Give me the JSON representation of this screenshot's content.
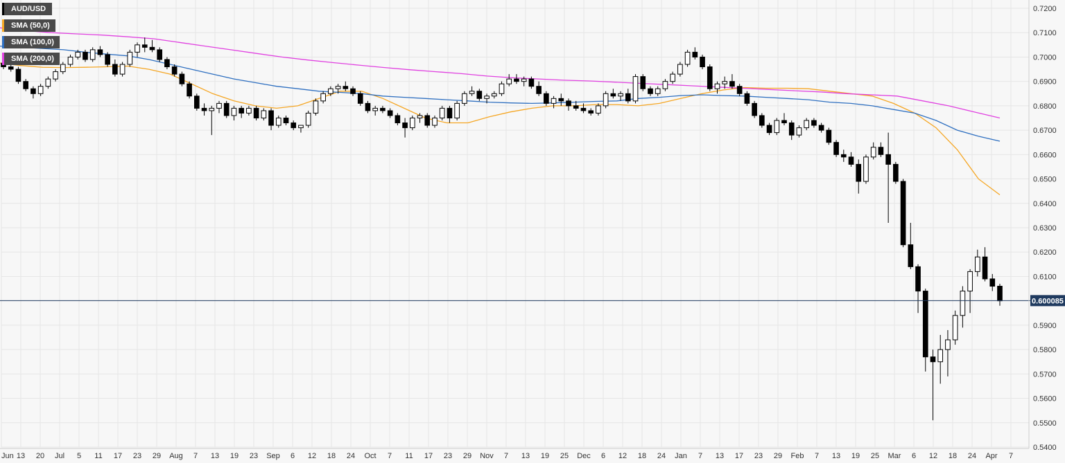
{
  "legend": {
    "symbol": "AUD/USD",
    "sma50": "SMA (50,0)",
    "sma100": "SMA (100,0)",
    "sma200": "SMA (200,0)"
  },
  "colors": {
    "background": "#f7f7f7",
    "grid": "#e6e6e6",
    "axis_text": "#333333",
    "candle_up_fill": "#ffffff",
    "candle_down_fill": "#000000",
    "candle_outline": "#000000",
    "sma50": "#f5a623",
    "sma100": "#2e6fc0",
    "sma200": "#e040e0",
    "price_line": "#1f3a5f",
    "price_label_bg": "#1f3a5f"
  },
  "chart_data": {
    "type": "candlestick",
    "title": "",
    "pair": "AUD/USD",
    "period": "daily",
    "ylim": [
      0.54,
      0.72
    ],
    "y_ticks": [
      "0.7200",
      "0.7100",
      "0.7000",
      "0.6900",
      "0.6800",
      "0.6700",
      "0.6600",
      "0.6500",
      "0.6400",
      "0.6300",
      "0.6200",
      "0.6100",
      "0.5900",
      "0.5800",
      "0.5700",
      "0.5600",
      "0.5500",
      "0.5400"
    ],
    "x_tick_labels": [
      "Jun",
      "13",
      "20",
      "Jul",
      "5",
      "11",
      "17",
      "23",
      "29",
      "Aug",
      "7",
      "13",
      "19",
      "23",
      "Sep",
      "6",
      "12",
      "18",
      "24",
      "Oct",
      "7",
      "11",
      "17",
      "23",
      "29",
      "Nov",
      "7",
      "13",
      "19",
      "25",
      "Dec",
      "6",
      "12",
      "18",
      "24",
      "Jan",
      "7",
      "13",
      "17",
      "23",
      "29",
      "Feb",
      "7",
      "13",
      "19",
      "25",
      "Mar",
      "6",
      "12",
      "18",
      "24",
      "Apr",
      "7"
    ],
    "current_price": 0.600085,
    "current_price_label": "0.600085",
    "grid": true,
    "legend_position": "top-left",
    "series": [
      {
        "name": "SMA (50,0)",
        "key": "sma50",
        "values": [
          0.6975,
          0.6965,
          0.6958,
          0.6957,
          0.6958,
          0.696,
          0.6963,
          0.695,
          0.693,
          0.689,
          0.685,
          0.682,
          0.68,
          0.679,
          0.68,
          0.683,
          0.686,
          0.686,
          0.683,
          0.679,
          0.675,
          0.673,
          0.673,
          0.6755,
          0.6775,
          0.679,
          0.68,
          0.68,
          0.6805,
          0.6805,
          0.68,
          0.681,
          0.683,
          0.685,
          0.6865,
          0.6875,
          0.6872,
          0.6872,
          0.687,
          0.686,
          0.685,
          0.684,
          0.681,
          0.677,
          0.671,
          0.662,
          0.65,
          0.6435
        ]
      },
      {
        "name": "SMA (100,0)",
        "key": "sma100",
        "values": [
          0.7045,
          0.704,
          0.7035,
          0.703,
          0.702,
          0.7012,
          0.7005,
          0.699,
          0.697,
          0.695,
          0.693,
          0.691,
          0.6895,
          0.688,
          0.687,
          0.686,
          0.6855,
          0.685,
          0.684,
          0.6835,
          0.683,
          0.6825,
          0.682,
          0.6815,
          0.6812,
          0.681,
          0.6812,
          0.6815,
          0.6818,
          0.682,
          0.683,
          0.6835,
          0.6842,
          0.6845,
          0.6842,
          0.684,
          0.6835,
          0.683,
          0.6825,
          0.6815,
          0.681,
          0.68,
          0.6785,
          0.677,
          0.674,
          0.67,
          0.6675,
          0.6655
        ]
      },
      {
        "name": "SMA (200,0)",
        "key": "sma200",
        "values": [
          0.712,
          0.7108,
          0.71,
          0.7095,
          0.709,
          0.7083,
          0.7075,
          0.706,
          0.7045,
          0.703,
          0.7015,
          0.7,
          0.6988,
          0.6977,
          0.6967,
          0.6957,
          0.6948,
          0.694,
          0.6932,
          0.6922,
          0.6915,
          0.691,
          0.6905,
          0.6902,
          0.6897,
          0.6892,
          0.6887,
          0.6882,
          0.6877,
          0.6872,
          0.6867,
          0.6862,
          0.6857,
          0.685,
          0.6845,
          0.684,
          0.682,
          0.68,
          0.6775,
          0.675
        ]
      },
      {
        "name": "AUD/USD",
        "key": "candles",
        "ohlc": [
          [
            0.6975,
            0.699,
            0.695,
            0.696
          ],
          [
            0.696,
            0.6975,
            0.694,
            0.695
          ],
          [
            0.695,
            0.696,
            0.689,
            0.69
          ],
          [
            0.69,
            0.691,
            0.686,
            0.687
          ],
          [
            0.687,
            0.688,
            0.683,
            0.685
          ],
          [
            0.685,
            0.689,
            0.684,
            0.688
          ],
          [
            0.688,
            0.692,
            0.687,
            0.691
          ],
          [
            0.691,
            0.695,
            0.69,
            0.694
          ],
          [
            0.694,
            0.698,
            0.693,
            0.697
          ],
          [
            0.697,
            0.701,
            0.696,
            0.7
          ],
          [
            0.7,
            0.703,
            0.699,
            0.702
          ],
          [
            0.702,
            0.703,
            0.698,
            0.699
          ],
          [
            0.699,
            0.704,
            0.698,
            0.703
          ],
          [
            0.703,
            0.7045,
            0.7,
            0.701
          ],
          [
            0.701,
            0.702,
            0.696,
            0.697
          ],
          [
            0.697,
            0.699,
            0.692,
            0.693
          ],
          [
            0.693,
            0.698,
            0.692,
            0.697
          ],
          [
            0.697,
            0.703,
            0.696,
            0.702
          ],
          [
            0.702,
            0.706,
            0.7,
            0.705
          ],
          [
            0.705,
            0.708,
            0.702,
            0.704
          ],
          [
            0.704,
            0.707,
            0.702,
            0.703
          ],
          [
            0.703,
            0.704,
            0.698,
            0.699
          ],
          [
            0.699,
            0.7,
            0.695,
            0.696
          ],
          [
            0.696,
            0.697,
            0.692,
            0.693
          ],
          [
            0.693,
            0.694,
            0.688,
            0.689
          ],
          [
            0.689,
            0.69,
            0.683,
            0.684
          ],
          [
            0.684,
            0.685,
            0.678,
            0.679
          ],
          [
            0.679,
            0.681,
            0.676,
            0.678
          ],
          [
            0.678,
            0.68,
            0.668,
            0.679
          ],
          [
            0.679,
            0.682,
            0.677,
            0.681
          ],
          [
            0.681,
            0.682,
            0.675,
            0.676
          ],
          [
            0.676,
            0.68,
            0.674,
            0.679
          ],
          [
            0.679,
            0.68,
            0.675,
            0.677
          ],
          [
            0.677,
            0.68,
            0.676,
            0.679
          ],
          [
            0.679,
            0.68,
            0.674,
            0.675
          ],
          [
            0.675,
            0.679,
            0.674,
            0.678
          ],
          [
            0.678,
            0.679,
            0.67,
            0.672
          ],
          [
            0.672,
            0.676,
            0.671,
            0.675
          ],
          [
            0.675,
            0.676,
            0.672,
            0.673
          ],
          [
            0.673,
            0.674,
            0.67,
            0.671
          ],
          [
            0.671,
            0.672,
            0.669,
            0.672
          ],
          [
            0.672,
            0.678,
            0.671,
            0.677
          ],
          [
            0.677,
            0.683,
            0.676,
            0.682
          ],
          [
            0.682,
            0.686,
            0.681,
            0.685
          ],
          [
            0.685,
            0.688,
            0.684,
            0.687
          ],
          [
            0.687,
            0.689,
            0.685,
            0.688
          ],
          [
            0.688,
            0.69,
            0.686,
            0.687
          ],
          [
            0.687,
            0.688,
            0.684,
            0.685
          ],
          [
            0.685,
            0.686,
            0.68,
            0.681
          ],
          [
            0.681,
            0.682,
            0.677,
            0.678
          ],
          [
            0.678,
            0.68,
            0.676,
            0.679
          ],
          [
            0.679,
            0.68,
            0.677,
            0.678
          ],
          [
            0.678,
            0.679,
            0.675,
            0.676
          ],
          [
            0.676,
            0.677,
            0.672,
            0.673
          ],
          [
            0.673,
            0.675,
            0.667,
            0.671
          ],
          [
            0.671,
            0.676,
            0.67,
            0.675
          ],
          [
            0.675,
            0.677,
            0.673,
            0.676
          ],
          [
            0.676,
            0.677,
            0.671,
            0.672
          ],
          [
            0.672,
            0.676,
            0.671,
            0.675
          ],
          [
            0.675,
            0.68,
            0.674,
            0.679
          ],
          [
            0.679,
            0.68,
            0.673,
            0.675
          ],
          [
            0.675,
            0.682,
            0.674,
            0.681
          ],
          [
            0.681,
            0.686,
            0.68,
            0.685
          ],
          [
            0.685,
            0.688,
            0.684,
            0.686
          ],
          [
            0.686,
            0.687,
            0.682,
            0.683
          ],
          [
            0.683,
            0.685,
            0.681,
            0.684
          ],
          [
            0.684,
            0.686,
            0.683,
            0.685
          ],
          [
            0.685,
            0.69,
            0.684,
            0.689
          ],
          [
            0.689,
            0.693,
            0.688,
            0.691
          ],
          [
            0.691,
            0.693,
            0.689,
            0.69
          ],
          [
            0.69,
            0.692,
            0.688,
            0.691
          ],
          [
            0.691,
            0.692,
            0.687,
            0.688
          ],
          [
            0.688,
            0.69,
            0.684,
            0.685
          ],
          [
            0.685,
            0.686,
            0.68,
            0.681
          ],
          [
            0.681,
            0.684,
            0.679,
            0.683
          ],
          [
            0.683,
            0.685,
            0.68,
            0.682
          ],
          [
            0.682,
            0.683,
            0.678,
            0.68
          ],
          [
            0.68,
            0.682,
            0.678,
            0.679
          ],
          [
            0.679,
            0.681,
            0.677,
            0.678
          ],
          [
            0.678,
            0.679,
            0.676,
            0.677
          ],
          [
            0.677,
            0.681,
            0.676,
            0.68
          ],
          [
            0.68,
            0.686,
            0.679,
            0.685
          ],
          [
            0.685,
            0.687,
            0.683,
            0.684
          ],
          [
            0.684,
            0.686,
            0.682,
            0.685
          ],
          [
            0.685,
            0.687,
            0.681,
            0.682
          ],
          [
            0.682,
            0.693,
            0.681,
            0.692
          ],
          [
            0.692,
            0.693,
            0.686,
            0.687
          ],
          [
            0.687,
            0.688,
            0.684,
            0.685
          ],
          [
            0.685,
            0.688,
            0.684,
            0.687
          ],
          [
            0.687,
            0.691,
            0.686,
            0.69
          ],
          [
            0.69,
            0.694,
            0.689,
            0.693
          ],
          [
            0.693,
            0.698,
            0.692,
            0.697
          ],
          [
            0.697,
            0.703,
            0.696,
            0.702
          ],
          [
            0.702,
            0.704,
            0.699,
            0.7
          ],
          [
            0.7,
            0.701,
            0.695,
            0.696
          ],
          [
            0.696,
            0.697,
            0.686,
            0.687
          ],
          [
            0.687,
            0.69,
            0.685,
            0.689
          ],
          [
            0.689,
            0.692,
            0.687,
            0.69
          ],
          [
            0.69,
            0.693,
            0.687,
            0.688
          ],
          [
            0.688,
            0.689,
            0.684,
            0.685
          ],
          [
            0.685,
            0.686,
            0.68,
            0.681
          ],
          [
            0.681,
            0.682,
            0.675,
            0.676
          ],
          [
            0.676,
            0.677,
            0.671,
            0.672
          ],
          [
            0.672,
            0.673,
            0.668,
            0.669
          ],
          [
            0.669,
            0.675,
            0.668,
            0.674
          ],
          [
            0.674,
            0.677,
            0.672,
            0.673
          ],
          [
            0.673,
            0.674,
            0.666,
            0.668
          ],
          [
            0.668,
            0.672,
            0.667,
            0.671
          ],
          [
            0.671,
            0.675,
            0.67,
            0.674
          ],
          [
            0.674,
            0.675,
            0.671,
            0.672
          ],
          [
            0.672,
            0.673,
            0.669,
            0.67
          ],
          [
            0.67,
            0.671,
            0.664,
            0.665
          ],
          [
            0.665,
            0.666,
            0.659,
            0.66
          ],
          [
            0.66,
            0.662,
            0.657,
            0.659
          ],
          [
            0.659,
            0.661,
            0.655,
            0.656
          ],
          [
            0.656,
            0.658,
            0.644,
            0.649
          ],
          [
            0.649,
            0.66,
            0.648,
            0.659
          ],
          [
            0.659,
            0.665,
            0.658,
            0.663
          ],
          [
            0.663,
            0.665,
            0.659,
            0.66
          ],
          [
            0.66,
            0.669,
            0.632,
            0.656
          ],
          [
            0.656,
            0.657,
            0.648,
            0.649
          ],
          [
            0.649,
            0.65,
            0.622,
            0.623
          ],
          [
            0.623,
            0.632,
            0.613,
            0.614
          ],
          [
            0.614,
            0.615,
            0.595,
            0.604
          ],
          [
            0.604,
            0.605,
            0.571,
            0.577
          ],
          [
            0.577,
            0.58,
            0.551,
            0.575
          ],
          [
            0.575,
            0.586,
            0.566,
            0.58
          ],
          [
            0.58,
            0.588,
            0.569,
            0.584
          ],
          [
            0.584,
            0.596,
            0.582,
            0.594
          ],
          [
            0.594,
            0.606,
            0.589,
            0.604
          ],
          [
            0.604,
            0.613,
            0.595,
            0.612
          ],
          [
            0.612,
            0.621,
            0.61,
            0.618
          ],
          [
            0.618,
            0.622,
            0.608,
            0.609
          ],
          [
            0.609,
            0.611,
            0.604,
            0.606
          ],
          [
            0.606,
            0.607,
            0.598,
            0.6
          ]
        ]
      }
    ]
  }
}
